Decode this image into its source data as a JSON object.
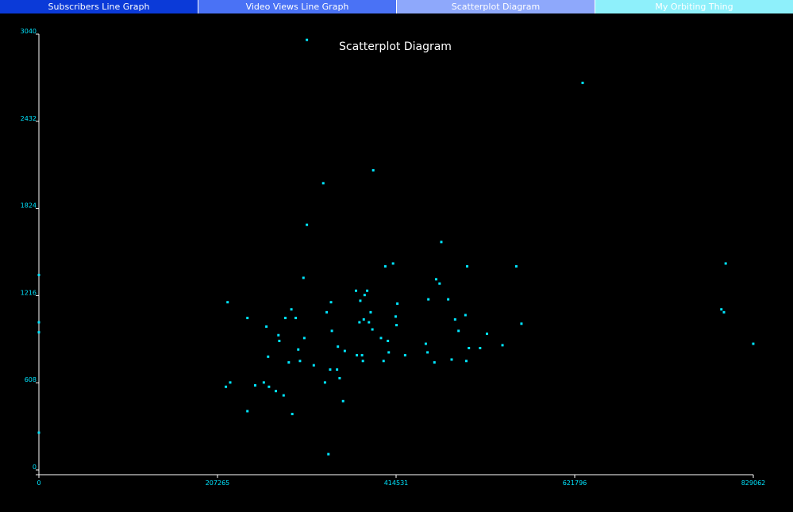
{
  "tabs": [
    {
      "label": "Subscribers Line Graph",
      "color": "#0b3ad8"
    },
    {
      "label": "Video Views Line Graph",
      "color": "#4a72f5"
    },
    {
      "label": "Scatterplot Diagram",
      "color": "#8ea8fb"
    },
    {
      "label": "My Orbiting Thing",
      "color": "#8ef0fb"
    }
  ],
  "colors": {
    "background": "#000000",
    "axis": "#ffffff",
    "points": "#00e5ff",
    "title": "#ffffff"
  },
  "chart_data": {
    "type": "scatter",
    "title": "Scatterplot Diagram",
    "xlabel": "",
    "ylabel": "",
    "xlim": [
      0,
      829062
    ],
    "ylim": [
      0,
      3040
    ],
    "x_ticks": [
      "0",
      "207265",
      "414531",
      "621796",
      "829062"
    ],
    "y_ticks": [
      "0",
      "608",
      "1216",
      "1824",
      "2432",
      "3040"
    ],
    "grid": false,
    "points": [
      [
        0,
        1360
      ],
      [
        0,
        1030
      ],
      [
        0,
        960
      ],
      [
        0,
        260
      ],
      [
        217000,
        580
      ],
      [
        219000,
        1170
      ],
      [
        222000,
        610
      ],
      [
        242000,
        410
      ],
      [
        242000,
        1060
      ],
      [
        251000,
        590
      ],
      [
        261000,
        610
      ],
      [
        264000,
        1000
      ],
      [
        266000,
        790
      ],
      [
        267000,
        580
      ],
      [
        275000,
        550
      ],
      [
        278000,
        940
      ],
      [
        279000,
        900
      ],
      [
        284000,
        520
      ],
      [
        286000,
        1060
      ],
      [
        290000,
        750
      ],
      [
        293000,
        1120
      ],
      [
        294000,
        390
      ],
      [
        298000,
        1060
      ],
      [
        301000,
        840
      ],
      [
        303000,
        760
      ],
      [
        307000,
        1340
      ],
      [
        308000,
        920
      ],
      [
        311000,
        1710
      ],
      [
        311000,
        3000
      ],
      [
        319000,
        730
      ],
      [
        330000,
        2000
      ],
      [
        332000,
        610
      ],
      [
        334000,
        1100
      ],
      [
        336000,
        110
      ],
      [
        338000,
        700
      ],
      [
        339000,
        1170
      ],
      [
        340000,
        970
      ],
      [
        346000,
        700
      ],
      [
        347000,
        860
      ],
      [
        349000,
        640
      ],
      [
        353000,
        480
      ],
      [
        355000,
        830
      ],
      [
        368000,
        1250
      ],
      [
        369000,
        800
      ],
      [
        372000,
        1030
      ],
      [
        373000,
        1180
      ],
      [
        375000,
        800
      ],
      [
        376000,
        760
      ],
      [
        377000,
        1050
      ],
      [
        378000,
        1220
      ],
      [
        381000,
        1250
      ],
      [
        383000,
        1030
      ],
      [
        385000,
        1100
      ],
      [
        387000,
        980
      ],
      [
        388000,
        2090
      ],
      [
        397000,
        920
      ],
      [
        400000,
        760
      ],
      [
        402000,
        1420
      ],
      [
        405000,
        900
      ],
      [
        406000,
        820
      ],
      [
        411000,
        1440
      ],
      [
        414000,
        1070
      ],
      [
        415000,
        1010
      ],
      [
        416000,
        1160
      ],
      [
        425000,
        800
      ],
      [
        449000,
        880
      ],
      [
        451000,
        820
      ],
      [
        452000,
        1190
      ],
      [
        459000,
        750
      ],
      [
        461000,
        1330
      ],
      [
        465000,
        1300
      ],
      [
        467000,
        1590
      ],
      [
        475000,
        1190
      ],
      [
        479000,
        770
      ],
      [
        483000,
        1050
      ],
      [
        487000,
        970
      ],
      [
        495000,
        1080
      ],
      [
        496000,
        760
      ],
      [
        497000,
        1420
      ],
      [
        499000,
        850
      ],
      [
        512000,
        850
      ],
      [
        520000,
        950
      ],
      [
        538000,
        870
      ],
      [
        554000,
        1420
      ],
      [
        560000,
        1020
      ],
      [
        631000,
        2700
      ],
      [
        792000,
        1120
      ],
      [
        795000,
        1100
      ],
      [
        797000,
        1440
      ],
      [
        829000,
        880
      ]
    ]
  }
}
